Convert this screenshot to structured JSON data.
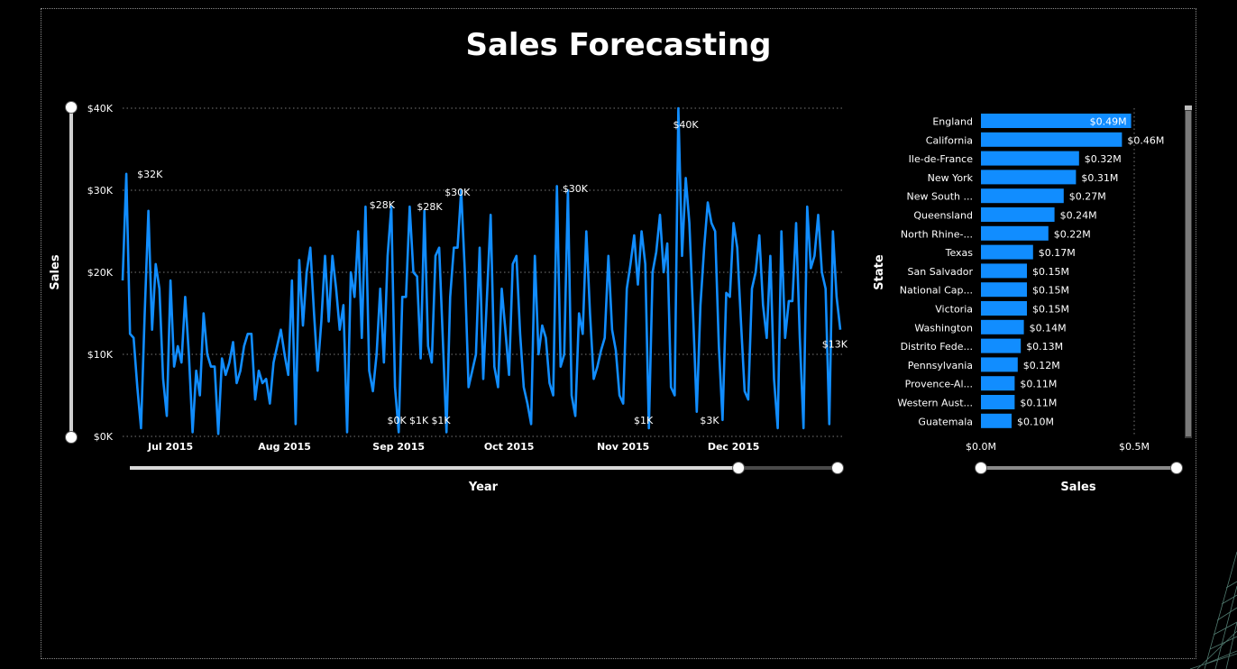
{
  "page": {
    "title": "Sales Forecasting"
  },
  "colors": {
    "series": "#118dff",
    "background": "#000000",
    "text": "#ffffff",
    "grid": "#777777"
  },
  "chart_data": [
    {
      "type": "line",
      "xlabel": "Year",
      "ylabel": "Sales",
      "ylim": [
        0,
        40000
      ],
      "y_ticks": [
        0,
        10000,
        20000,
        30000,
        40000
      ],
      "y_tick_labels": [
        "$0K",
        "$10K",
        "$20K",
        "$30K",
        "$40K"
      ],
      "x_range": [
        "2015-06-18",
        "2015-12-30"
      ],
      "x_ticks": [
        "2015-07-01",
        "2015-08-01",
        "2015-09-01",
        "2015-10-01",
        "2015-11-01",
        "2015-12-01"
      ],
      "x_tick_labels": [
        "Jul 2015",
        "Aug 2015",
        "Sep 2015",
        "Oct 2015",
        "Nov 2015",
        "Dec 2015"
      ],
      "grid": true,
      "series": [
        {
          "values": [
            19000,
            32000,
            12500,
            12000,
            6000,
            1000,
            15000,
            27500,
            13000,
            21000,
            18000,
            7000,
            2500,
            19000,
            8500,
            11000,
            9000,
            17000,
            10000,
            500,
            8000,
            5000,
            15000,
            10000,
            8500,
            8500,
            300,
            9500,
            7500,
            9000,
            11500,
            6500,
            8000,
            11000,
            12500,
            12500,
            4500,
            8000,
            6500,
            7000,
            4000,
            9000,
            11000,
            13000,
            10000,
            7500,
            19000,
            1500,
            21500,
            13500,
            20000,
            23000,
            15000,
            8000,
            14000,
            22000,
            14000,
            22000,
            18000,
            13000,
            16000,
            500,
            20000,
            17000,
            25000,
            12000,
            28000,
            8000,
            5500,
            10000,
            18000,
            9000,
            22000,
            28000,
            6000,
            500,
            17000,
            17000,
            28000,
            20000,
            19500,
            9500,
            27500,
            11000,
            9000,
            22000,
            23000,
            12000,
            500,
            17000,
            23000,
            23000,
            30000,
            20000,
            6000,
            8000,
            10000,
            23000,
            7000,
            17000,
            27000,
            8500,
            6000,
            18000,
            13000,
            7500,
            21000,
            22000,
            12500,
            6000,
            4000,
            1500,
            22000,
            10000,
            13500,
            12000,
            6500,
            5000,
            30500,
            8500,
            10000,
            30000,
            5000,
            2500,
            15000,
            12500,
            25000,
            15000,
            7000,
            8500,
            10500,
            12000,
            22000,
            13000,
            10500,
            5000,
            4000,
            18000,
            21000,
            24500,
            18500,
            25000,
            21000,
            1000,
            20000,
            22500,
            27000,
            20000,
            23500,
            6000,
            5000,
            40000,
            22000,
            31500,
            26000,
            15000,
            3000,
            16000,
            23000,
            28500,
            26000,
            25000,
            11000,
            2000,
            17500,
            17000,
            26000,
            23000,
            14000,
            5500,
            4500,
            18000,
            20000,
            24500,
            16000,
            12000,
            22000,
            7000,
            1000,
            25000,
            12000,
            16500,
            16500,
            26000,
            12000,
            1000,
            28000,
            20500,
            22000,
            27000,
            20000,
            18000,
            1500,
            25000,
            17000,
            13000
          ]
        }
      ],
      "data_labels": [
        {
          "x": "2015-06-20",
          "y": 32000,
          "text": "$32K"
        },
        {
          "x": "2015-08-30",
          "y": 28000,
          "text": "$28K"
        },
        {
          "x": "2015-08-31",
          "y": 0,
          "text": "$0K"
        },
        {
          "x": "2015-09-04",
          "y": 28000,
          "text": "$28K"
        },
        {
          "x": "2015-09-06",
          "y": 1000,
          "text": "$1K"
        },
        {
          "x": "2015-09-12",
          "y": 1000,
          "text": "$1K"
        },
        {
          "x": "2015-09-15",
          "y": 30000,
          "text": "$30K"
        },
        {
          "x": "2015-10-17",
          "y": 30000,
          "text": "$30K"
        },
        {
          "x": "2015-11-06",
          "y": 1000,
          "text": "$1K"
        },
        {
          "x": "2015-11-18",
          "y": 40000,
          "text": "$40K"
        },
        {
          "x": "2015-11-24",
          "y": 3000,
          "text": "$3K"
        },
        {
          "x": "2015-12-30",
          "y": 13000,
          "text": "$13K"
        }
      ]
    },
    {
      "type": "bar",
      "orientation": "horizontal",
      "xlabel": "Sales",
      "ylabel": "State",
      "xlim": [
        0,
        500000
      ],
      "x_ticks": [
        0,
        500000
      ],
      "x_tick_labels": [
        "$0.0M",
        "$0.5M"
      ],
      "categories": [
        "England",
        "California",
        "Ile-de-France",
        "New York",
        "New South ...",
        "Queensland",
        "North Rhine-...",
        "Texas",
        "San Salvador",
        "National Cap...",
        "Victoria",
        "Washington",
        "Distrito Fede...",
        "Pennsylvania",
        "Provence-Al...",
        "Western Aust...",
        "Guatemala"
      ],
      "values": [
        490000,
        460000,
        320000,
        310000,
        270000,
        240000,
        220000,
        170000,
        150000,
        150000,
        150000,
        140000,
        130000,
        120000,
        110000,
        110000,
        100000
      ],
      "value_labels": [
        "$0.49M",
        "$0.46M",
        "$0.32M",
        "$0.31M",
        "$0.27M",
        "$0.24M",
        "$0.22M",
        "$0.17M",
        "$0.15M",
        "$0.15M",
        "$0.15M",
        "$0.14M",
        "$0.13M",
        "$0.12M",
        "$0.11M",
        "$0.11M",
        "$0.10M"
      ]
    }
  ],
  "sliders": {
    "line_y": {
      "start": 0,
      "end": 1
    },
    "line_x": {
      "start": 0,
      "end": 0.86
    },
    "bar_x": {
      "start": 0,
      "end": 1
    }
  }
}
